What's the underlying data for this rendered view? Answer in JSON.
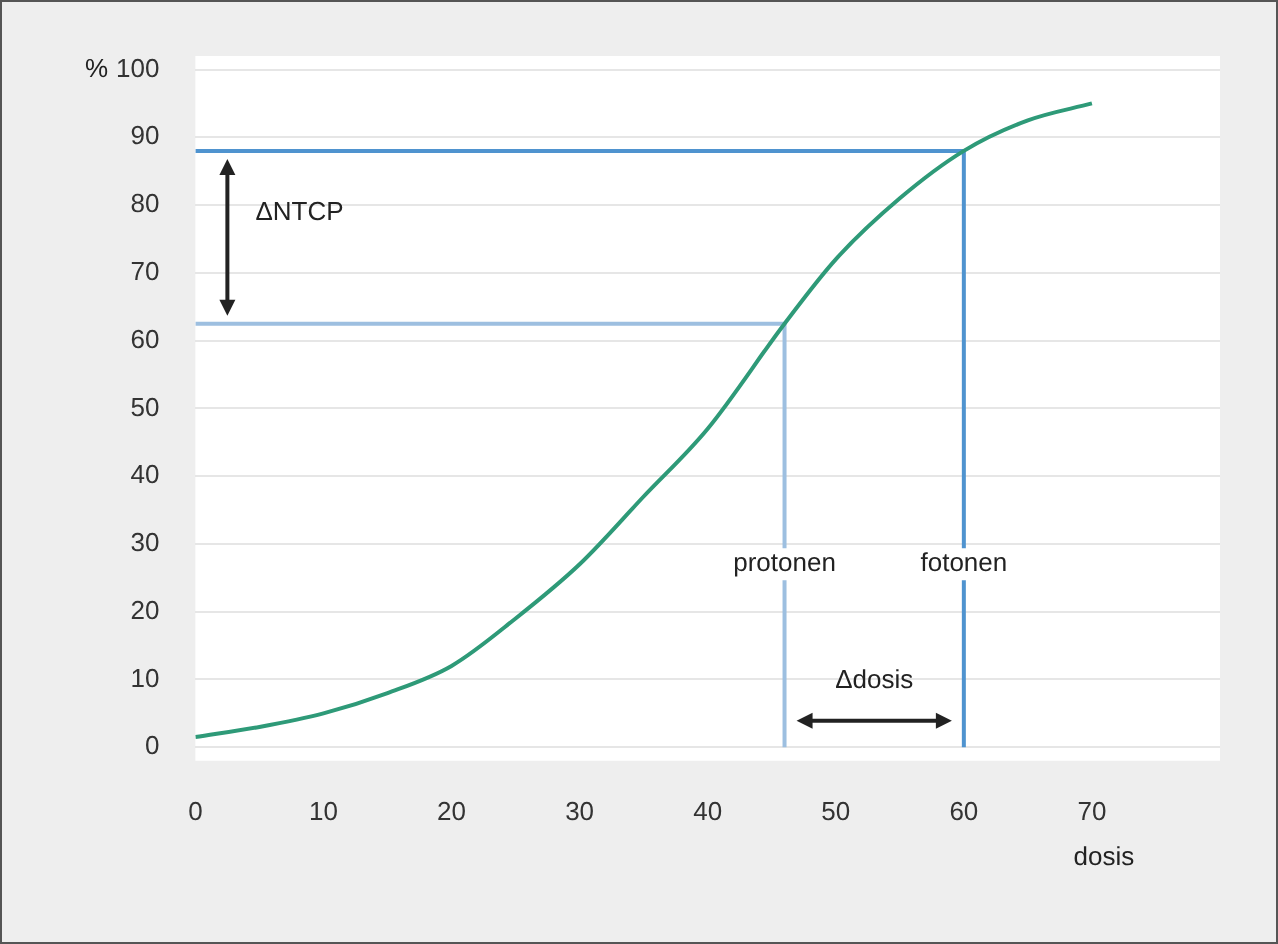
{
  "chart_data": {
    "type": "line",
    "xlabel": "dosis",
    "ylabel": "%",
    "xlim": [
      0,
      80
    ],
    "ylim": [
      -2,
      102
    ],
    "xticks": [
      0,
      10,
      20,
      30,
      40,
      50,
      60,
      70
    ],
    "yticks": [
      0,
      10,
      20,
      30,
      40,
      50,
      60,
      70,
      80,
      90,
      100
    ],
    "grid": "y",
    "legend": false,
    "marker": "none",
    "line_style": "solid",
    "series": [
      {
        "color": "#2e9a78",
        "x": [
          0,
          5,
          10,
          15,
          20,
          25,
          30,
          35,
          40,
          46,
          50,
          55,
          60,
          65,
          70
        ],
        "values": [
          1.5,
          3,
          5,
          8,
          12,
          19,
          27,
          37,
          47,
          62.5,
          72,
          81,
          88,
          92.5,
          95
        ]
      },
      {
        "color": "#9dbfe0",
        "x": [
          0,
          46,
          46
        ],
        "values": [
          62.5,
          62.5,
          0
        ]
      },
      {
        "color": "#4f93cf",
        "x": [
          0,
          60,
          60
        ],
        "values": [
          88,
          88,
          0
        ]
      }
    ],
    "annotations": [
      "ΔNTCP",
      {
        "text": "protonen",
        "x": 46,
        "y": 27
      },
      {
        "text": "fotonen",
        "x": 60,
        "y": 27
      },
      "Δdosis"
    ]
  }
}
